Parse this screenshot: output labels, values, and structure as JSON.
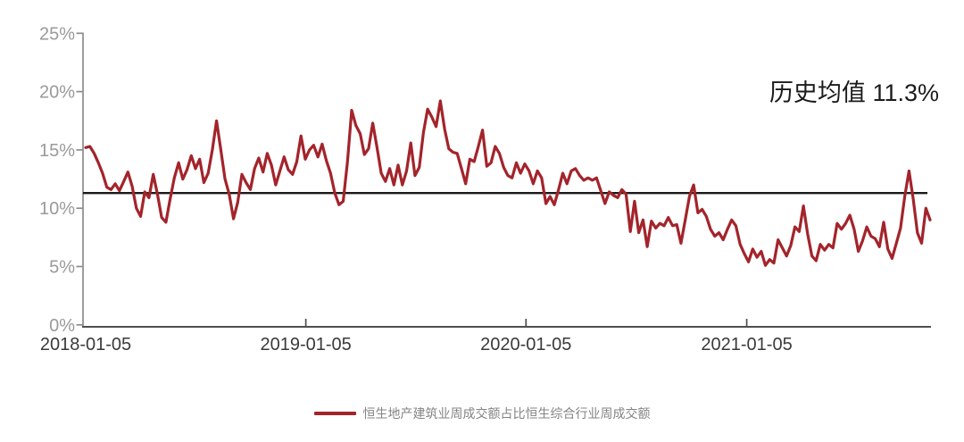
{
  "chart_data": {
    "type": "line",
    "title": "",
    "x_axis": {
      "start_date": "2018-01-05",
      "frequency": "weekly",
      "tick_labels": [
        "2018-01-05",
        "2019-01-05",
        "2020-01-05",
        "2021-01-05"
      ],
      "tick_week_indices": [
        0,
        52.14,
        104.29,
        156.57
      ]
    },
    "y_axis": {
      "tick_values": [
        0,
        5,
        10,
        15,
        20,
        25
      ],
      "tick_labels": [
        "0%",
        "5%",
        "10%",
        "15%",
        "20%",
        "25%"
      ],
      "ylim": [
        0,
        25
      ],
      "unit": "%"
    },
    "grid": false,
    "legend_position": "bottom-center",
    "mean_line": {
      "label": "历史均值 11.3%",
      "value": 11.3,
      "color": "#1a1a1a"
    },
    "axis_color": "#8c8c8c",
    "bottom_axis_color": "#4f4f4f",
    "series": [
      {
        "name": "恒生地产建筑业周成交额占比恒生综合行业周成交额",
        "color": "#a3242b",
        "values": [
          15.2,
          15.3,
          14.7,
          13.9,
          13.0,
          11.8,
          11.6,
          12.1,
          11.5,
          12.3,
          13.1,
          11.9,
          10.0,
          9.3,
          11.4,
          10.9,
          12.9,
          11.2,
          9.2,
          8.8,
          10.8,
          12.6,
          13.9,
          12.5,
          13.3,
          14.5,
          13.4,
          14.2,
          12.2,
          13.0,
          15.0,
          17.5,
          15.0,
          12.5,
          11.2,
          9.1,
          10.5,
          12.9,
          12.2,
          11.6,
          13.4,
          14.3,
          13.1,
          14.7,
          13.7,
          12.0,
          13.2,
          14.4,
          13.3,
          12.9,
          14.0,
          16.2,
          14.2,
          15.0,
          15.4,
          14.4,
          15.5,
          14.1,
          13.0,
          11.3,
          10.3,
          10.6,
          14.0,
          18.4,
          17.1,
          16.4,
          14.6,
          15.1,
          17.3,
          15.2,
          13.0,
          12.3,
          13.4,
          12.0,
          13.7,
          12.0,
          13.2,
          15.6,
          12.8,
          13.5,
          16.5,
          18.5,
          17.8,
          17.0,
          19.2,
          16.8,
          15.1,
          14.8,
          14.7,
          13.4,
          12.1,
          14.2,
          14.0,
          15.3,
          16.7,
          13.6,
          13.9,
          15.3,
          14.7,
          13.5,
          12.8,
          12.6,
          13.9,
          13.0,
          13.8,
          13.2,
          12.1,
          13.2,
          12.6,
          10.4,
          11.0,
          10.3,
          11.6,
          13.0,
          12.1,
          13.2,
          13.4,
          12.8,
          12.4,
          12.6,
          12.4,
          12.6,
          11.5,
          10.4,
          11.4,
          11.1,
          10.9,
          11.6,
          11.2,
          8.0,
          10.6,
          7.9,
          9.0,
          6.7,
          8.9,
          8.3,
          8.7,
          8.5,
          9.2,
          8.5,
          8.6,
          7.0,
          9.0,
          11.0,
          12.0,
          9.6,
          9.9,
          9.3,
          8.2,
          7.6,
          7.9,
          7.3,
          8.2,
          9.0,
          8.5,
          6.9,
          6.1,
          5.4,
          6.5,
          5.8,
          6.3,
          5.1,
          5.6,
          5.3,
          7.3,
          6.6,
          5.9,
          6.8,
          8.4,
          8.0,
          10.2,
          7.8,
          5.9,
          5.5,
          6.9,
          6.4,
          6.9,
          6.6,
          8.7,
          8.2,
          8.7,
          9.4,
          8.2,
          6.3,
          7.2,
          8.4,
          7.6,
          7.4,
          6.7,
          8.8,
          6.5,
          5.7,
          7.0,
          8.3,
          11.0,
          13.2,
          10.8,
          7.9,
          7.0,
          10.0,
          9.0
        ]
      }
    ]
  },
  "legend": {
    "label": "恒生地产建筑业周成交额占比恒生综合行业周成交额"
  }
}
